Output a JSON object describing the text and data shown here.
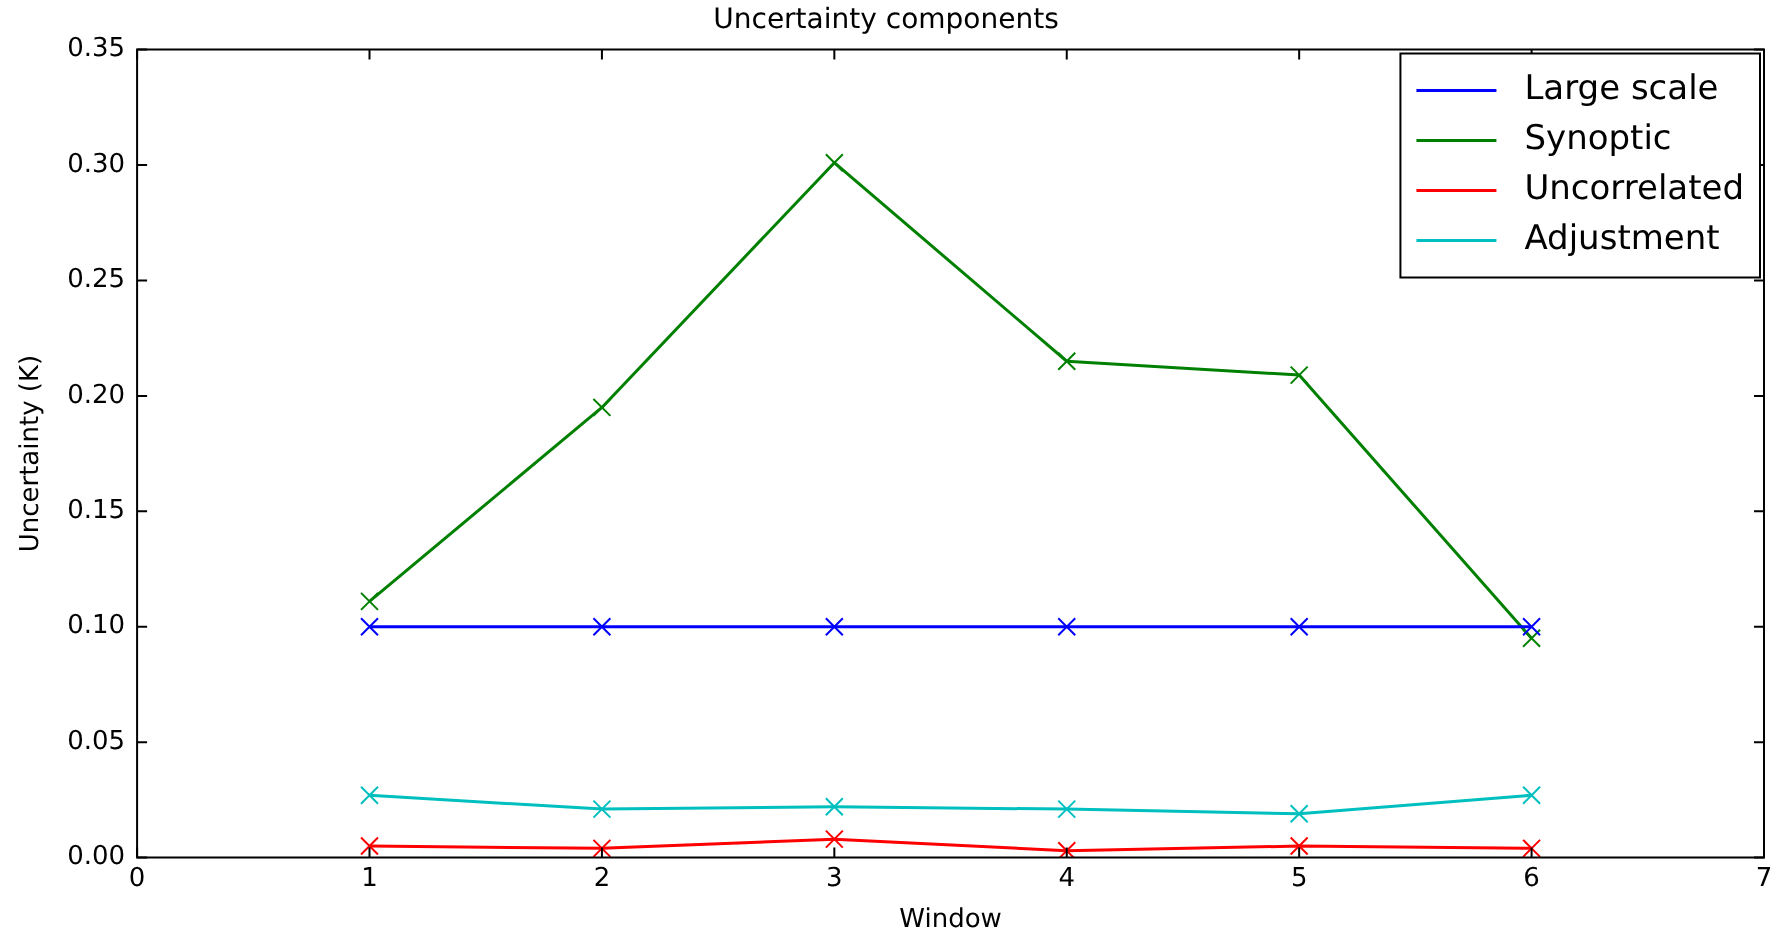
{
  "chart_data": {
    "type": "line",
    "title": "Uncertainty components",
    "xlabel": "Window",
    "ylabel": "Uncertainty (K)",
    "x": [
      1,
      2,
      3,
      4,
      5,
      6
    ],
    "series": [
      {
        "name": "Large scale",
        "color": "#0000ff",
        "values": [
          0.1,
          0.1,
          0.1,
          0.1,
          0.1,
          0.1
        ]
      },
      {
        "name": "Synoptic",
        "color": "#008000",
        "values": [
          0.111,
          0.195,
          0.301,
          0.215,
          0.209,
          0.095
        ]
      },
      {
        "name": "Uncorrelated",
        "color": "#ff0000",
        "values": [
          0.005,
          0.004,
          0.008,
          0.003,
          0.005,
          0.004
        ]
      },
      {
        "name": "Adjustment",
        "color": "#00bfbf",
        "values": [
          0.027,
          0.021,
          0.022,
          0.021,
          0.019,
          0.027
        ]
      }
    ],
    "xlim": [
      0,
      7
    ],
    "xticks": [
      0,
      1,
      2,
      3,
      4,
      5,
      6,
      7
    ],
    "ylim": [
      0,
      0.35
    ],
    "yticks": [
      {
        "value": 0,
        "label": "0.00"
      },
      {
        "value": 0.05,
        "label": "0.05"
      },
      {
        "value": 0.1,
        "label": "0.10"
      },
      {
        "value": 0.15,
        "label": "0.15"
      },
      {
        "value": 0.2,
        "label": "0.20"
      },
      {
        "value": 0.25,
        "label": "0.25"
      },
      {
        "value": 0.3,
        "label": "0.30"
      },
      {
        "value": 0.35,
        "label": "0.35"
      }
    ],
    "grid": false,
    "legend": "top right",
    "marker": "cross",
    "line_style": "solid"
  }
}
